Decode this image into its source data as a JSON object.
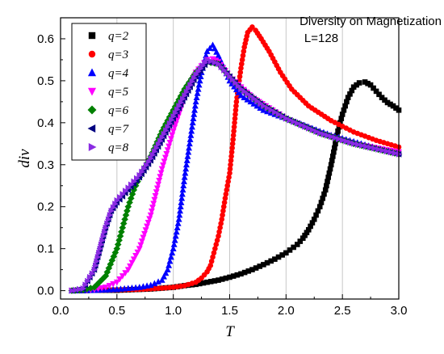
{
  "chart_data": {
    "type": "scatter",
    "title": "",
    "annotations": [
      "Diversity on Magnetization",
      "L=128"
    ],
    "xlabel": "T",
    "ylabel": "div",
    "xlim": [
      0.0,
      3.0
    ],
    "ylim": [
      -0.02,
      0.65
    ],
    "xticks": [
      "0.0",
      "0.5",
      "1.0",
      "1.5",
      "2.0",
      "2.5",
      "3.0"
    ],
    "yticks": [
      "0.0",
      "0.1",
      "0.2",
      "0.3",
      "0.4",
      "0.5",
      "0.6"
    ],
    "grid": "vertical",
    "legend_position": "top-left",
    "series": [
      {
        "name": "q=2",
        "marker": "square",
        "color": "#000000",
        "points": [
          [
            0.1,
            0.0
          ],
          [
            0.2,
            0.0
          ],
          [
            0.3,
            0.001
          ],
          [
            0.4,
            0.001
          ],
          [
            0.5,
            0.001
          ],
          [
            0.6,
            0.002
          ],
          [
            0.7,
            0.003
          ],
          [
            0.8,
            0.004
          ],
          [
            0.9,
            0.006
          ],
          [
            1.0,
            0.008
          ],
          [
            1.1,
            0.012
          ],
          [
            1.2,
            0.015
          ],
          [
            1.3,
            0.02
          ],
          [
            1.4,
            0.025
          ],
          [
            1.5,
            0.032
          ],
          [
            1.6,
            0.04
          ],
          [
            1.7,
            0.05
          ],
          [
            1.8,
            0.062
          ],
          [
            1.9,
            0.075
          ],
          [
            2.0,
            0.09
          ],
          [
            2.1,
            0.11
          ],
          [
            2.15,
            0.125
          ],
          [
            2.2,
            0.145
          ],
          [
            2.25,
            0.17
          ],
          [
            2.3,
            0.2
          ],
          [
            2.35,
            0.24
          ],
          [
            2.4,
            0.3
          ],
          [
            2.43,
            0.34
          ],
          [
            2.46,
            0.38
          ],
          [
            2.5,
            0.42
          ],
          [
            2.55,
            0.46
          ],
          [
            2.6,
            0.485
          ],
          [
            2.65,
            0.495
          ],
          [
            2.7,
            0.497
          ],
          [
            2.75,
            0.49
          ],
          [
            2.8,
            0.475
          ],
          [
            2.85,
            0.46
          ],
          [
            2.9,
            0.448
          ],
          [
            2.95,
            0.44
          ],
          [
            3.0,
            0.43
          ]
        ]
      },
      {
        "name": "q=3",
        "marker": "circle",
        "color": "#ff0000",
        "points": [
          [
            0.1,
            0.0
          ],
          [
            0.3,
            0.001
          ],
          [
            0.5,
            0.002
          ],
          [
            0.7,
            0.003
          ],
          [
            0.9,
            0.006
          ],
          [
            1.0,
            0.008
          ],
          [
            1.1,
            0.012
          ],
          [
            1.2,
            0.02
          ],
          [
            1.25,
            0.03
          ],
          [
            1.3,
            0.045
          ],
          [
            1.33,
            0.06
          ],
          [
            1.36,
            0.09
          ],
          [
            1.4,
            0.13
          ],
          [
            1.43,
            0.17
          ],
          [
            1.46,
            0.22
          ],
          [
            1.5,
            0.28
          ],
          [
            1.53,
            0.36
          ],
          [
            1.56,
            0.45
          ],
          [
            1.6,
            0.53
          ],
          [
            1.63,
            0.58
          ],
          [
            1.66,
            0.615
          ],
          [
            1.7,
            0.628
          ],
          [
            1.73,
            0.62
          ],
          [
            1.78,
            0.6
          ],
          [
            1.85,
            0.57
          ],
          [
            1.95,
            0.52
          ],
          [
            2.05,
            0.48
          ],
          [
            2.2,
            0.44
          ],
          [
            2.4,
            0.405
          ],
          [
            2.6,
            0.378
          ],
          [
            2.8,
            0.358
          ],
          [
            3.0,
            0.342
          ]
        ]
      },
      {
        "name": "q=4",
        "marker": "triangle-up",
        "color": "#0000ff",
        "points": [
          [
            0.1,
            0.0
          ],
          [
            0.3,
            0.001
          ],
          [
            0.5,
            0.003
          ],
          [
            0.7,
            0.008
          ],
          [
            0.8,
            0.013
          ],
          [
            0.9,
            0.025
          ],
          [
            0.95,
            0.05
          ],
          [
            1.0,
            0.1
          ],
          [
            1.05,
            0.17
          ],
          [
            1.1,
            0.27
          ],
          [
            1.15,
            0.36
          ],
          [
            1.2,
            0.45
          ],
          [
            1.25,
            0.52
          ],
          [
            1.3,
            0.57
          ],
          [
            1.35,
            0.585
          ],
          [
            1.4,
            0.56
          ],
          [
            1.5,
            0.5
          ],
          [
            1.6,
            0.465
          ],
          [
            1.8,
            0.43
          ],
          [
            2.0,
            0.41
          ],
          [
            2.2,
            0.39
          ],
          [
            2.4,
            0.37
          ],
          [
            2.6,
            0.355
          ],
          [
            2.8,
            0.34
          ],
          [
            3.0,
            0.328
          ]
        ]
      },
      {
        "name": "q=5",
        "marker": "triangle-down",
        "color": "#ff00ff",
        "points": [
          [
            0.1,
            0.0
          ],
          [
            0.2,
            0.001
          ],
          [
            0.3,
            0.003
          ],
          [
            0.4,
            0.008
          ],
          [
            0.5,
            0.02
          ],
          [
            0.6,
            0.05
          ],
          [
            0.7,
            0.1
          ],
          [
            0.8,
            0.18
          ],
          [
            0.9,
            0.29
          ],
          [
            1.0,
            0.38
          ],
          [
            1.1,
            0.46
          ],
          [
            1.2,
            0.52
          ],
          [
            1.3,
            0.55
          ],
          [
            1.35,
            0.552
          ],
          [
            1.4,
            0.545
          ],
          [
            1.5,
            0.51
          ],
          [
            1.7,
            0.46
          ],
          [
            2.0,
            0.41
          ],
          [
            2.3,
            0.375
          ],
          [
            2.6,
            0.35
          ],
          [
            3.0,
            0.33
          ]
        ]
      },
      {
        "name": "q=6",
        "marker": "diamond",
        "color": "#008000",
        "points": [
          [
            0.1,
            0.0
          ],
          [
            0.2,
            0.002
          ],
          [
            0.3,
            0.008
          ],
          [
            0.4,
            0.035
          ],
          [
            0.5,
            0.1
          ],
          [
            0.55,
            0.15
          ],
          [
            0.6,
            0.2
          ],
          [
            0.65,
            0.24
          ],
          [
            0.7,
            0.27
          ],
          [
            0.8,
            0.32
          ],
          [
            0.9,
            0.38
          ],
          [
            1.0,
            0.43
          ],
          [
            1.1,
            0.48
          ],
          [
            1.2,
            0.52
          ],
          [
            1.3,
            0.545
          ],
          [
            1.4,
            0.54
          ],
          [
            1.6,
            0.48
          ],
          [
            1.8,
            0.44
          ],
          [
            2.0,
            0.41
          ],
          [
            2.3,
            0.375
          ],
          [
            2.6,
            0.35
          ],
          [
            3.0,
            0.325
          ]
        ]
      },
      {
        "name": "q=7",
        "marker": "triangle-left",
        "color": "#000080",
        "points": [
          [
            0.1,
            0.0
          ],
          [
            0.2,
            0.005
          ],
          [
            0.3,
            0.05
          ],
          [
            0.35,
            0.1
          ],
          [
            0.4,
            0.15
          ],
          [
            0.45,
            0.19
          ],
          [
            0.5,
            0.21
          ],
          [
            0.6,
            0.24
          ],
          [
            0.7,
            0.27
          ],
          [
            0.8,
            0.31
          ],
          [
            0.9,
            0.36
          ],
          [
            1.0,
            0.41
          ],
          [
            1.1,
            0.46
          ],
          [
            1.2,
            0.51
          ],
          [
            1.3,
            0.545
          ],
          [
            1.4,
            0.54
          ],
          [
            1.6,
            0.48
          ],
          [
            1.8,
            0.44
          ],
          [
            2.0,
            0.41
          ],
          [
            2.3,
            0.375
          ],
          [
            2.6,
            0.35
          ],
          [
            3.0,
            0.325
          ]
        ]
      },
      {
        "name": "q=8",
        "marker": "triangle-right",
        "color": "#8a2be2",
        "points": [
          [
            0.1,
            0.0
          ],
          [
            0.2,
            0.005
          ],
          [
            0.3,
            0.05
          ],
          [
            0.35,
            0.1
          ],
          [
            0.4,
            0.15
          ],
          [
            0.45,
            0.19
          ],
          [
            0.5,
            0.215
          ],
          [
            0.6,
            0.245
          ],
          [
            0.7,
            0.275
          ],
          [
            0.8,
            0.315
          ],
          [
            0.9,
            0.365
          ],
          [
            1.0,
            0.415
          ],
          [
            1.1,
            0.465
          ],
          [
            1.2,
            0.515
          ],
          [
            1.3,
            0.55
          ],
          [
            1.4,
            0.54
          ],
          [
            1.6,
            0.48
          ],
          [
            1.8,
            0.44
          ],
          [
            2.0,
            0.41
          ],
          [
            2.3,
            0.375
          ],
          [
            2.6,
            0.35
          ],
          [
            3.0,
            0.325
          ]
        ]
      }
    ]
  }
}
